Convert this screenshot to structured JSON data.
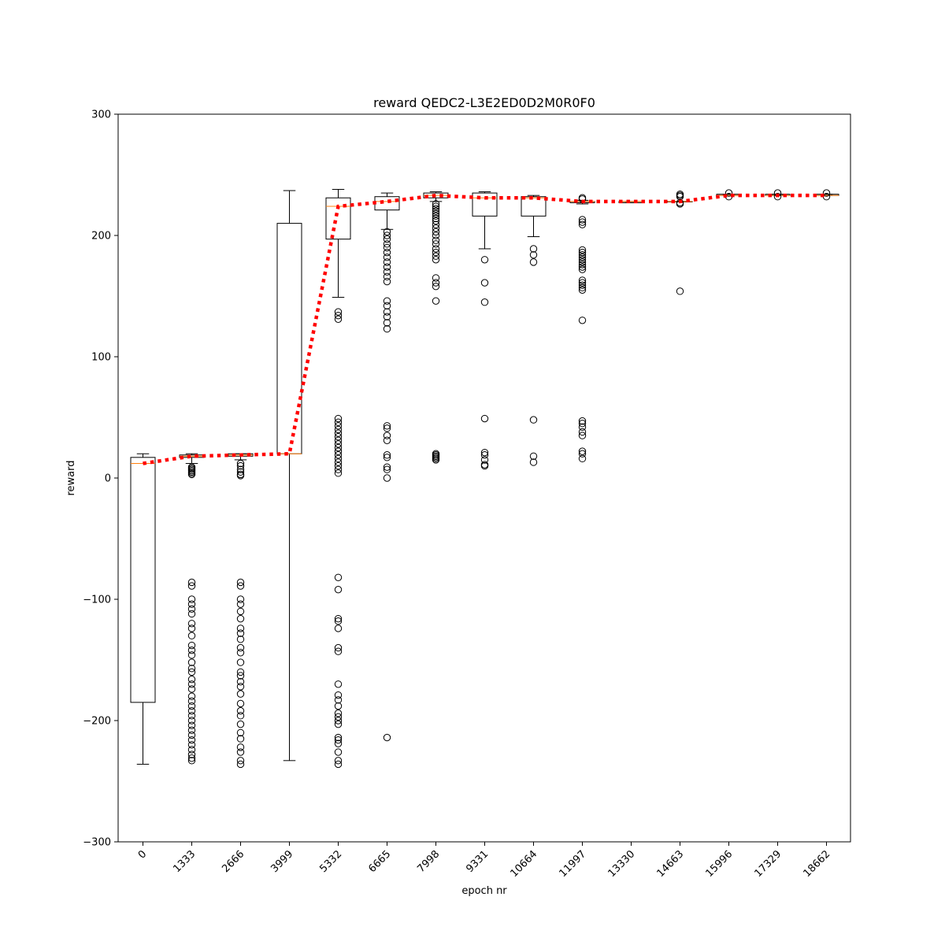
{
  "chart_data": {
    "type": "box",
    "title": "reward QEDC2-L3E2ED0D2M0R0F0",
    "xlabel": "epoch nr",
    "ylabel": "reward",
    "ylim": [
      -300,
      300
    ],
    "yticks": [
      -300,
      -200,
      -100,
      0,
      100,
      200,
      300
    ],
    "ytick_labels": [
      "−300",
      "−200",
      "−100",
      "0",
      "100",
      "200",
      "300"
    ],
    "grid": false,
    "categories": [
      "0",
      "1333",
      "2666",
      "3999",
      "5332",
      "6665",
      "7998",
      "9331",
      "10664",
      "11997",
      "13330",
      "14663",
      "15996",
      "17329",
      "18662"
    ],
    "boxes": [
      {
        "q1": -185,
        "median": 12,
        "q3": 17,
        "whisker_low": -236,
        "whisker_high": 20,
        "outliers": []
      },
      {
        "q1": 17,
        "median": 18,
        "q3": 19,
        "whisker_low": 12,
        "whisker_high": 20,
        "outliers": [
          3,
          4,
          5,
          6,
          7,
          8,
          9,
          -86,
          -89,
          -100,
          -104,
          -108,
          -112,
          -120,
          -124,
          -130,
          -138,
          -142,
          -146,
          -152,
          -157,
          -160,
          -166,
          -170,
          -174,
          -180,
          -184,
          -188,
          -192,
          -196,
          -200,
          -204,
          -208,
          -212,
          -216,
          -220,
          -224,
          -228,
          -231,
          -233
        ]
      },
      {
        "q1": 18,
        "median": 19,
        "q3": 20,
        "whisker_low": 15,
        "whisker_high": 20,
        "outliers": [
          2,
          3,
          5,
          7,
          10,
          12,
          -86,
          -89,
          -100,
          -104,
          -110,
          -116,
          -124,
          -128,
          -133,
          -140,
          -144,
          -152,
          -160,
          -163,
          -168,
          -172,
          -178,
          -186,
          -192,
          -196,
          -203,
          -210,
          -215,
          -222,
          -226,
          -233,
          -236
        ]
      },
      {
        "q1": 20,
        "median": 20,
        "q3": 210,
        "whisker_low": -233,
        "whisker_high": 237,
        "outliers": []
      },
      {
        "q1": 197,
        "median": 224,
        "q3": 231,
        "whisker_low": 149,
        "whisker_high": 238,
        "outliers": [
          137,
          134,
          131,
          49,
          46,
          43,
          40,
          37,
          34,
          31,
          28,
          25,
          22,
          19,
          16,
          13,
          10,
          7,
          4,
          -82,
          -92,
          -116,
          -118,
          -124,
          -140,
          -143,
          -170,
          -179,
          -183,
          -188,
          -194,
          -197,
          -200,
          -203,
          -214,
          -216,
          -219,
          -226,
          -233,
          -236
        ]
      },
      {
        "q1": 221,
        "median": 228,
        "q3": 232,
        "whisker_low": 205,
        "whisker_high": 235,
        "outliers": [
          203,
          200,
          197,
          193,
          190,
          186,
          182,
          178,
          174,
          170,
          166,
          162,
          146,
          142,
          137,
          133,
          128,
          123,
          43,
          41,
          35,
          31,
          19,
          17,
          9,
          7,
          0,
          -214
        ]
      },
      {
        "q1": 231,
        "median": 233,
        "q3": 235,
        "whisker_low": 228,
        "whisker_high": 236,
        "outliers": [
          226,
          224,
          222,
          220,
          218,
          216,
          214,
          212,
          209,
          206,
          203,
          200,
          196,
          193,
          189,
          186,
          183,
          180,
          165,
          161,
          158,
          146,
          20,
          19,
          18,
          17,
          16,
          15
        ]
      },
      {
        "q1": 216,
        "median": 231,
        "q3": 235,
        "whisker_low": 189,
        "whisker_high": 236,
        "outliers": [
          180,
          161,
          145,
          49,
          21,
          19,
          15,
          11,
          10
        ]
      },
      {
        "q1": 216,
        "median": 231,
        "q3": 232,
        "whisker_low": 199,
        "whisker_high": 233,
        "outliers": [
          189,
          184,
          178,
          48,
          18,
          13
        ]
      },
      {
        "q1": 227,
        "median": 228,
        "q3": 228,
        "whisker_low": 226,
        "whisker_high": 229,
        "outliers": [
          231,
          230,
          213,
          211,
          209,
          188,
          186,
          184,
          182,
          180,
          178,
          176,
          174,
          172,
          163,
          161,
          159,
          157,
          155,
          130,
          47,
          45,
          42,
          38,
          35,
          22,
          20,
          16
        ]
      },
      {
        "q1": 227,
        "median": 228,
        "q3": 228,
        "whisker_low": 227,
        "whisker_high": 228,
        "outliers": []
      },
      {
        "q1": 228,
        "median": 228,
        "q3": 228,
        "whisker_low": 228,
        "whisker_high": 228,
        "outliers": [
          234,
          233,
          232,
          227,
          226,
          154
        ]
      },
      {
        "q1": 233,
        "median": 233,
        "q3": 234,
        "whisker_low": 233,
        "whisker_high": 234,
        "outliers": [
          232,
          235
        ]
      },
      {
        "q1": 233,
        "median": 233,
        "q3": 234,
        "whisker_low": 233,
        "whisker_high": 234,
        "outliers": [
          232,
          235
        ]
      },
      {
        "q1": 233,
        "median": 233,
        "q3": 234,
        "whisker_low": 233,
        "whisker_high": 234,
        "outliers": [
          232,
          235
        ]
      }
    ],
    "mean_line": {
      "values": [
        12,
        18,
        19,
        20,
        224,
        228,
        233,
        231,
        231,
        228,
        228,
        228,
        233,
        233,
        233
      ],
      "color": "#ff0000",
      "style": "dotted"
    },
    "median_color": "#ff7f0e",
    "box_color": "#000000"
  }
}
